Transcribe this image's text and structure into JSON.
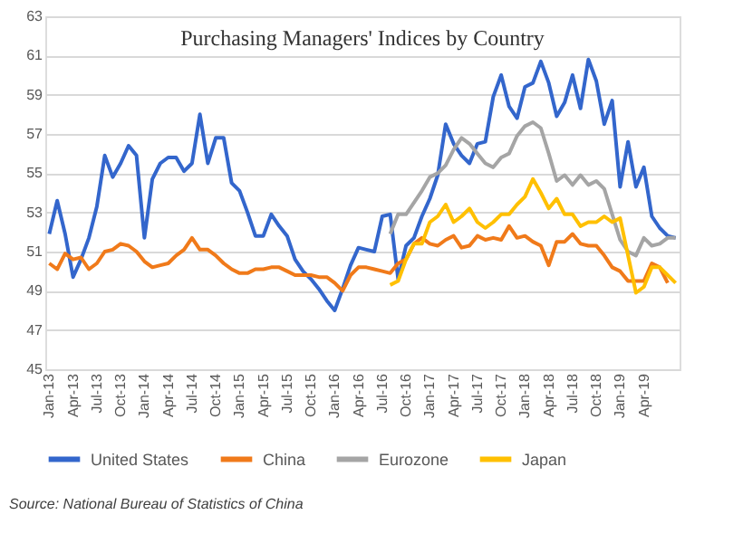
{
  "chart_data": {
    "type": "line",
    "title": "Purchasing Managers' Indices by Country",
    "categories": [
      "Jan-13",
      null,
      null,
      "Apr-13",
      null,
      null,
      "Jul-13",
      null,
      null,
      "Oct-13",
      null,
      null,
      "Jan-14",
      null,
      null,
      "Apr-14",
      null,
      null,
      "Jul-14",
      null,
      null,
      "Oct-14",
      null,
      null,
      "Jan-15",
      null,
      null,
      "Apr-15",
      null,
      null,
      "Jul-15",
      null,
      null,
      "Oct-15",
      null,
      null,
      "Jan-16",
      null,
      null,
      "Apr-16",
      null,
      null,
      "Jul-16",
      null,
      null,
      "Oct-16",
      null,
      null,
      "Jan-17",
      null,
      null,
      "Apr-17",
      null,
      null,
      "Jul-17",
      null,
      null,
      "Oct-17",
      null,
      null,
      "Jan-18",
      null,
      null,
      "Apr-18",
      null,
      null,
      "Jul-18",
      null,
      null,
      "Oct-18",
      null,
      null,
      "Jan-19",
      null,
      null,
      "Apr-19",
      null,
      null,
      null,
      null
    ],
    "series": [
      {
        "name": "United States",
        "color": "#3366cc",
        "values": [
          51.9,
          53.6,
          51.9,
          49.7,
          50.6,
          51.7,
          53.3,
          55.9,
          54.8,
          55.5,
          56.4,
          55.9,
          51.7,
          54.7,
          55.5,
          55.8,
          55.8,
          55.1,
          55.5,
          58.0,
          55.5,
          56.8,
          56.8,
          54.5,
          54.1,
          53.0,
          51.8,
          51.8,
          52.9,
          52.3,
          51.8,
          50.6,
          50.0,
          49.6,
          49.1,
          48.5,
          48.0,
          49.1,
          50.3,
          51.2,
          51.1,
          51.0,
          52.8,
          52.9,
          49.6,
          51.3,
          51.7,
          52.8,
          53.7,
          54.9,
          57.5,
          56.5,
          55.9,
          55.5,
          56.5,
          56.6,
          58.9,
          60.0,
          58.4,
          57.8,
          59.4,
          59.6,
          60.7,
          59.6,
          57.9,
          58.6,
          60.0,
          58.3,
          60.8,
          59.7,
          57.5,
          58.7,
          54.3,
          56.6,
          54.3,
          55.3,
          52.8,
          52.2,
          51.8,
          51.7
        ]
      },
      {
        "name": "China",
        "color": "#f07a1a",
        "values": [
          50.4,
          50.1,
          50.9,
          50.6,
          50.7,
          50.1,
          50.4,
          51.0,
          51.1,
          51.4,
          51.3,
          51.0,
          50.5,
          50.2,
          50.3,
          50.4,
          50.8,
          51.1,
          51.7,
          51.1,
          51.1,
          50.8,
          50.4,
          50.1,
          49.9,
          49.9,
          50.1,
          50.1,
          50.2,
          50.2,
          50.0,
          49.8,
          49.8,
          49.8,
          49.7,
          49.7,
          49.4,
          49.0,
          49.8,
          50.2,
          50.2,
          50.1,
          50.0,
          49.9,
          50.4,
          50.6,
          51.4,
          51.7,
          51.4,
          51.3,
          51.6,
          51.8,
          51.2,
          51.3,
          51.8,
          51.6,
          51.7,
          51.6,
          52.3,
          51.7,
          51.8,
          51.5,
          51.3,
          50.3,
          51.5,
          51.5,
          51.9,
          51.4,
          51.3,
          51.3,
          50.8,
          50.2,
          50.0,
          49.5,
          49.5,
          49.5,
          50.4,
          50.2,
          49.4,
          null
        ]
      },
      {
        "name": "Eurozone",
        "color": "#a5a5a5",
        "values": [
          null,
          null,
          null,
          null,
          null,
          null,
          null,
          null,
          null,
          null,
          null,
          null,
          null,
          null,
          null,
          null,
          null,
          null,
          null,
          null,
          null,
          null,
          null,
          null,
          null,
          null,
          null,
          null,
          null,
          null,
          null,
          null,
          null,
          null,
          null,
          null,
          null,
          null,
          null,
          null,
          null,
          null,
          null,
          51.9,
          52.9,
          52.9,
          53.5,
          54.1,
          54.8,
          55.0,
          55.4,
          56.2,
          56.8,
          56.5,
          56.0,
          55.5,
          55.3,
          55.8,
          56.0,
          56.9,
          57.4,
          57.6,
          57.3,
          56.0,
          54.6,
          54.9,
          54.4,
          54.9,
          54.4,
          54.6,
          54.2,
          52.9,
          51.6,
          51.0,
          50.8,
          51.7,
          51.3,
          51.4,
          51.7,
          51.7
        ]
      },
      {
        "name": "Japan",
        "color": "#ffc000",
        "values": [
          null,
          null,
          null,
          null,
          null,
          null,
          null,
          null,
          null,
          null,
          null,
          null,
          null,
          null,
          null,
          null,
          null,
          null,
          null,
          null,
          null,
          null,
          null,
          null,
          null,
          null,
          null,
          null,
          null,
          null,
          null,
          null,
          null,
          null,
          null,
          null,
          null,
          null,
          null,
          null,
          null,
          null,
          null,
          49.3,
          49.5,
          50.6,
          51.4,
          51.4,
          52.5,
          52.8,
          53.4,
          52.5,
          52.8,
          53.2,
          52.5,
          52.2,
          52.5,
          52.9,
          52.9,
          53.4,
          53.8,
          54.7,
          54.0,
          53.2,
          53.7,
          52.9,
          52.9,
          52.3,
          52.5,
          52.5,
          52.8,
          52.5,
          52.7,
          50.8,
          48.9,
          49.2,
          50.2,
          50.2,
          49.8,
          49.4
        ]
      }
    ],
    "ylim": [
      45,
      63
    ],
    "yticks": [
      45,
      47,
      49,
      51,
      53,
      55,
      57,
      59,
      61,
      63
    ],
    "grid": "y",
    "legend": "bottom",
    "annotations": [
      "Source: National Bureau of Statistics of China"
    ]
  }
}
